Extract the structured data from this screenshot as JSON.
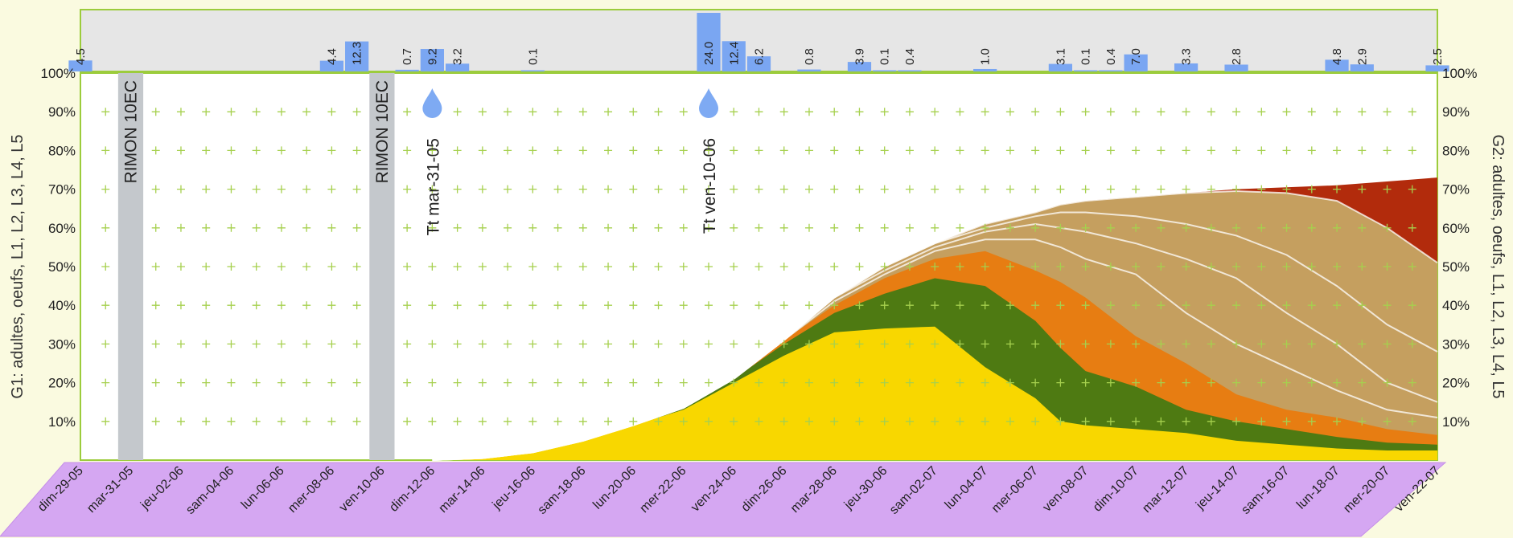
{
  "chart_data": {
    "type": "area",
    "y_axis_left_label": "G1: adultes, oeufs, L1, L2, L3, L4, L5",
    "y_axis_right_label": "G2: adultes, oeufs, L1, L2, L3, L4, L5",
    "y_ticks": [
      "10%",
      "20%",
      "30%",
      "40%",
      "50%",
      "60%",
      "70%",
      "80%",
      "90%",
      "100%"
    ],
    "ylim": [
      0,
      100
    ],
    "grid": "dotted crosses",
    "x_dates": [
      "dim-29-05",
      "lun-30-05",
      "mar-31-05",
      "mer-01-06",
      "jeu-02-06",
      "ven-03-06",
      "sam-04-06",
      "dim-05-06",
      "lun-06-06",
      "mar-07-06",
      "mer-08-06",
      "jeu-09-06",
      "ven-10-06",
      "sam-11-06",
      "dim-12-06",
      "lun-13-06",
      "mar-14-06",
      "mer-15-06",
      "jeu-16-06",
      "ven-17-06",
      "sam-18-06",
      "dim-19-06",
      "lun-20-06",
      "mar-21-06",
      "mer-22-06",
      "jeu-23-06",
      "ven-24-06",
      "sam-25-06",
      "dim-26-06",
      "lun-27-06",
      "mar-28-06",
      "mer-29-06",
      "jeu-30-06",
      "ven-01-07",
      "sam-02-07",
      "dim-03-07",
      "lun-04-07",
      "mar-05-07",
      "mer-06-07",
      "jeu-07-07",
      "ven-08-07",
      "sam-09-07",
      "dim-10-07",
      "lun-11-07",
      "mar-12-07",
      "mer-13-07",
      "jeu-14-07",
      "ven-15-07",
      "sam-16-07",
      "dim-17-07",
      "lun-18-07",
      "mar-19-07",
      "mer-20-07",
      "jeu-21-07",
      "ven-22-07"
    ],
    "x_tick_labels": [
      "dim-29-05",
      "mar-31-05",
      "jeu-02-06",
      "sam-04-06",
      "lun-06-06",
      "mer-08-06",
      "ven-10-06",
      "dim-12-06",
      "mar-14-06",
      "jeu-16-06",
      "sam-18-06",
      "lun-20-06",
      "mer-22-06",
      "ven-24-06",
      "dim-26-06",
      "mar-28-06",
      "jeu-30-06",
      "sam-02-07",
      "lun-04-07",
      "mer-06-07",
      "ven-08-07",
      "dim-10-07",
      "mar-12-07",
      "jeu-14-07",
      "sam-16-07",
      "lun-18-07",
      "mer-20-07",
      "ven-22-07"
    ],
    "rainfall": [
      {
        "date": "dim-29-05",
        "mm": 4.5
      },
      {
        "date": "mer-08-06",
        "mm": 4.4
      },
      {
        "date": "jeu-09-06",
        "mm": 12.3
      },
      {
        "date": "sam-11-06",
        "mm": 0.7
      },
      {
        "date": "dim-12-06",
        "mm": 9.2
      },
      {
        "date": "lun-13-06",
        "mm": 3.2
      },
      {
        "date": "jeu-16-06",
        "mm": 0.1
      },
      {
        "date": "jeu-23-06",
        "mm": 24.0
      },
      {
        "date": "ven-24-06",
        "mm": 12.4
      },
      {
        "date": "sam-25-06",
        "mm": 6.2
      },
      {
        "date": "lun-27-06",
        "mm": 0.8
      },
      {
        "date": "mer-29-06",
        "mm": 3.9
      },
      {
        "date": "jeu-30-06",
        "mm": 0.1
      },
      {
        "date": "ven-01-07",
        "mm": 0.4
      },
      {
        "date": "lun-04-07",
        "mm": 1.0
      },
      {
        "date": "jeu-07-07",
        "mm": 3.1
      },
      {
        "date": "ven-08-07",
        "mm": 0.1
      },
      {
        "date": "sam-09-07",
        "mm": 0.4
      },
      {
        "date": "dim-10-07",
        "mm": 7.0
      },
      {
        "date": "mar-12-07",
        "mm": 3.3
      },
      {
        "date": "jeu-14-07",
        "mm": 2.8
      },
      {
        "date": "lun-18-07",
        "mm": 4.8
      },
      {
        "date": "mar-19-07",
        "mm": 2.9
      },
      {
        "date": "ven-22-07",
        "mm": 2.5
      }
    ],
    "treatments": [
      {
        "date": "mar-31-05",
        "label": "RIMON 10EC"
      },
      {
        "date": "ven-10-06",
        "label": "RIMON 10EC"
      }
    ],
    "markers": [
      {
        "date": "dim-12-06",
        "label": "Tt mar-31-05"
      },
      {
        "date": "jeu-23-06",
        "label": "Tt ven-10-06"
      }
    ],
    "series": [
      {
        "color": "#f8d700",
        "points": [
          [
            "dim-12-06",
            0
          ],
          [
            "mar-14-06",
            0.5
          ],
          [
            "jeu-16-06",
            2
          ],
          [
            "sam-18-06",
            5
          ],
          [
            "lun-20-06",
            9
          ],
          [
            "mer-22-06",
            13
          ],
          [
            "ven-24-06",
            20
          ],
          [
            "dim-26-06",
            27
          ],
          [
            "mar-28-06",
            33
          ],
          [
            "jeu-30-06",
            34
          ],
          [
            "sam-02-07",
            34.5
          ],
          [
            "lun-04-07",
            24
          ],
          [
            "mer-06-07",
            16
          ],
          [
            "jeu-07-07",
            10
          ],
          [
            "ven-08-07",
            9
          ],
          [
            "dim-10-07",
            8
          ],
          [
            "mar-12-07",
            7
          ],
          [
            "jeu-14-07",
            5
          ],
          [
            "sam-16-07",
            4
          ],
          [
            "lun-18-07",
            3
          ],
          [
            "mer-20-07",
            2.5
          ],
          [
            "ven-22-07",
            2.5
          ]
        ]
      },
      {
        "color": "#4e7a12",
        "points": [
          [
            "dim-12-06",
            0
          ],
          [
            "mar-14-06",
            0.5
          ],
          [
            "jeu-16-06",
            2
          ],
          [
            "sam-18-06",
            5
          ],
          [
            "lun-20-06",
            9
          ],
          [
            "mer-22-06",
            13.5
          ],
          [
            "ven-24-06",
            21
          ],
          [
            "dim-26-06",
            30
          ],
          [
            "mar-28-06",
            38
          ],
          [
            "jeu-30-06",
            43
          ],
          [
            "sam-02-07",
            47
          ],
          [
            "lun-04-07",
            45
          ],
          [
            "mer-06-07",
            36
          ],
          [
            "jeu-07-07",
            29
          ],
          [
            "ven-08-07",
            23
          ],
          [
            "dim-10-07",
            19
          ],
          [
            "mar-12-07",
            13
          ],
          [
            "jeu-14-07",
            10
          ],
          [
            "sam-16-07",
            8
          ],
          [
            "lun-18-07",
            6
          ],
          [
            "mer-20-07",
            4.5
          ],
          [
            "ven-22-07",
            4
          ]
        ]
      },
      {
        "color": "#e77d12",
        "points": [
          [
            "dim-12-06",
            0
          ],
          [
            "mar-14-06",
            0.5
          ],
          [
            "jeu-16-06",
            2
          ],
          [
            "sam-18-06",
            5
          ],
          [
            "lun-20-06",
            9
          ],
          [
            "mer-22-06",
            13.5
          ],
          [
            "ven-24-06",
            21
          ],
          [
            "dim-26-06",
            31
          ],
          [
            "mar-28-06",
            40
          ],
          [
            "jeu-30-06",
            47
          ],
          [
            "sam-02-07",
            52
          ],
          [
            "lun-04-07",
            54
          ],
          [
            "mer-06-07",
            49
          ],
          [
            "jeu-07-07",
            46
          ],
          [
            "ven-08-07",
            42
          ],
          [
            "dim-10-07",
            32
          ],
          [
            "mar-12-07",
            25
          ],
          [
            "jeu-14-07",
            17
          ],
          [
            "sam-16-07",
            13
          ],
          [
            "lun-18-07",
            11
          ],
          [
            "mer-20-07",
            8
          ],
          [
            "ven-22-07",
            6.5
          ]
        ]
      },
      {
        "color": "#c59f5f",
        "points": [
          [
            "dim-12-06",
            0
          ],
          [
            "mar-14-06",
            0.5
          ],
          [
            "jeu-16-06",
            2
          ],
          [
            "sam-18-06",
            5
          ],
          [
            "lun-20-06",
            9
          ],
          [
            "mer-22-06",
            13.5
          ],
          [
            "ven-24-06",
            21
          ],
          [
            "dim-26-06",
            31
          ],
          [
            "mar-28-06",
            41
          ],
          [
            "jeu-30-06",
            48
          ],
          [
            "sam-02-07",
            54
          ],
          [
            "lun-04-07",
            57
          ],
          [
            "mer-06-07",
            57
          ],
          [
            "jeu-07-07",
            55
          ],
          [
            "ven-08-07",
            52
          ],
          [
            "dim-10-07",
            48
          ],
          [
            "mar-12-07",
            38
          ],
          [
            "jeu-14-07",
            30
          ],
          [
            "sam-16-07",
            24
          ],
          [
            "lun-18-07",
            18
          ],
          [
            "mer-20-07",
            13
          ],
          [
            "ven-22-07",
            11
          ]
        ]
      },
      {
        "color": "#c59f5f",
        "points": [
          [
            "dim-12-06",
            0
          ],
          [
            "mar-14-06",
            0.5
          ],
          [
            "jeu-16-06",
            2
          ],
          [
            "sam-18-06",
            5
          ],
          [
            "lun-20-06",
            9
          ],
          [
            "mer-22-06",
            13.5
          ],
          [
            "ven-24-06",
            21
          ],
          [
            "dim-26-06",
            31
          ],
          [
            "mar-28-06",
            42
          ],
          [
            "jeu-30-06",
            49
          ],
          [
            "sam-02-07",
            55
          ],
          [
            "lun-04-07",
            59
          ],
          [
            "mer-06-07",
            61
          ],
          [
            "jeu-07-07",
            60
          ],
          [
            "ven-08-07",
            59
          ],
          [
            "dim-10-07",
            56
          ],
          [
            "mar-12-07",
            52
          ],
          [
            "jeu-14-07",
            47
          ],
          [
            "sam-16-07",
            38
          ],
          [
            "lun-18-07",
            30
          ],
          [
            "mer-20-07",
            20
          ],
          [
            "ven-22-07",
            15
          ]
        ]
      },
      {
        "color": "#c59f5f",
        "points": [
          [
            "dim-12-06",
            0
          ],
          [
            "mar-14-06",
            0.5
          ],
          [
            "jeu-16-06",
            2
          ],
          [
            "sam-18-06",
            5
          ],
          [
            "lun-20-06",
            9
          ],
          [
            "mer-22-06",
            13.5
          ],
          [
            "ven-24-06",
            21
          ],
          [
            "dim-26-06",
            31
          ],
          [
            "mar-28-06",
            42
          ],
          [
            "jeu-30-06",
            50
          ],
          [
            "sam-02-07",
            56
          ],
          [
            "lun-04-07",
            60
          ],
          [
            "mer-06-07",
            63
          ],
          [
            "jeu-07-07",
            64
          ],
          [
            "ven-08-07",
            64
          ],
          [
            "dim-10-07",
            63
          ],
          [
            "mar-12-07",
            61
          ],
          [
            "jeu-14-07",
            58
          ],
          [
            "sam-16-07",
            53
          ],
          [
            "lun-18-07",
            45
          ],
          [
            "mer-20-07",
            35
          ],
          [
            "ven-22-07",
            28
          ]
        ]
      },
      {
        "color": "#c59f5f",
        "points": [
          [
            "dim-12-06",
            0
          ],
          [
            "mar-14-06",
            0.5
          ],
          [
            "jeu-16-06",
            2
          ],
          [
            "sam-18-06",
            5
          ],
          [
            "lun-20-06",
            9
          ],
          [
            "mer-22-06",
            13.5
          ],
          [
            "ven-24-06",
            21
          ],
          [
            "dim-26-06",
            31
          ],
          [
            "mar-28-06",
            42
          ],
          [
            "jeu-30-06",
            50
          ],
          [
            "sam-02-07",
            56
          ],
          [
            "lun-04-07",
            61
          ],
          [
            "mer-06-07",
            64
          ],
          [
            "jeu-07-07",
            66
          ],
          [
            "ven-08-07",
            67
          ],
          [
            "dim-10-07",
            68
          ],
          [
            "mar-12-07",
            69
          ],
          [
            "jeu-14-07",
            69.5
          ],
          [
            "sam-16-07",
            69
          ],
          [
            "lun-18-07",
            67
          ],
          [
            "mer-20-07",
            60
          ],
          [
            "ven-22-07",
            51
          ]
        ]
      },
      {
        "color": "#b22b0c",
        "points": [
          [
            "dim-12-06",
            0
          ],
          [
            "mar-14-06",
            0.5
          ],
          [
            "jeu-16-06",
            2
          ],
          [
            "sam-18-06",
            5
          ],
          [
            "lun-20-06",
            9
          ],
          [
            "mer-22-06",
            13.5
          ],
          [
            "ven-24-06",
            21
          ],
          [
            "dim-26-06",
            31
          ],
          [
            "mar-28-06",
            42
          ],
          [
            "jeu-30-06",
            50
          ],
          [
            "sam-02-07",
            56
          ],
          [
            "lun-04-07",
            61
          ],
          [
            "mer-06-07",
            64
          ],
          [
            "jeu-07-07",
            66
          ],
          [
            "ven-08-07",
            67
          ],
          [
            "dim-10-07",
            68
          ],
          [
            "mar-12-07",
            69
          ],
          [
            "jeu-14-07",
            70
          ],
          [
            "sam-16-07",
            70.5
          ],
          [
            "lun-18-07",
            71
          ],
          [
            "mer-20-07",
            72
          ],
          [
            "ven-22-07",
            73
          ]
        ]
      }
    ]
  }
}
